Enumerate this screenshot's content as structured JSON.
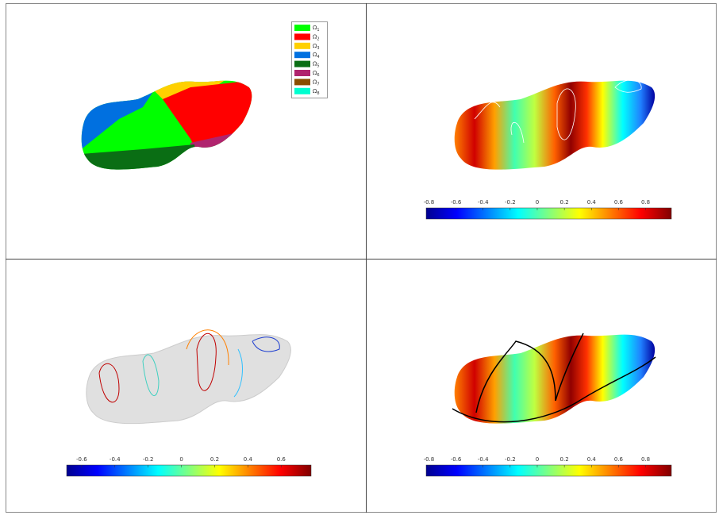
{
  "panels": [
    {
      "legend": [
        {
          "symbol": "Ω",
          "sub": "1",
          "color": "#00ff00"
        },
        {
          "symbol": "Ω",
          "sub": "2",
          "color": "#ff0000"
        },
        {
          "symbol": "Ω",
          "sub": "3",
          "color": "#ffd000"
        },
        {
          "symbol": "Ω",
          "sub": "4",
          "color": "#0070e0"
        },
        {
          "symbol": "Ω",
          "sub": "5",
          "color": "#0a6e14"
        },
        {
          "symbol": "Ω",
          "sub": "6",
          "color": "#b0246e"
        },
        {
          "symbol": "Ω",
          "sub": "7",
          "color": "#8a4e00"
        },
        {
          "symbol": "Ω",
          "sub": "8",
          "color": "#00ffd0"
        }
      ]
    },
    {
      "colorbar": {
        "lim": [
          -0.82,
          0.99
        ],
        "ticks": [
          -0.8,
          -0.6,
          -0.4,
          -0.2,
          0,
          0.2,
          0.4,
          0.6,
          0.8
        ]
      }
    },
    {
      "colorbar": {
        "lim": [
          -0.69,
          0.78
        ],
        "ticks": [
          -0.6,
          -0.4,
          -0.2,
          0,
          0.2,
          0.4,
          0.6
        ]
      }
    },
    {
      "colorbar": {
        "lim": [
          -0.82,
          0.99
        ],
        "ticks": [
          -0.8,
          -0.6,
          -0.4,
          -0.2,
          0,
          0.2,
          0.4,
          0.6,
          0.8
        ]
      }
    }
  ]
}
